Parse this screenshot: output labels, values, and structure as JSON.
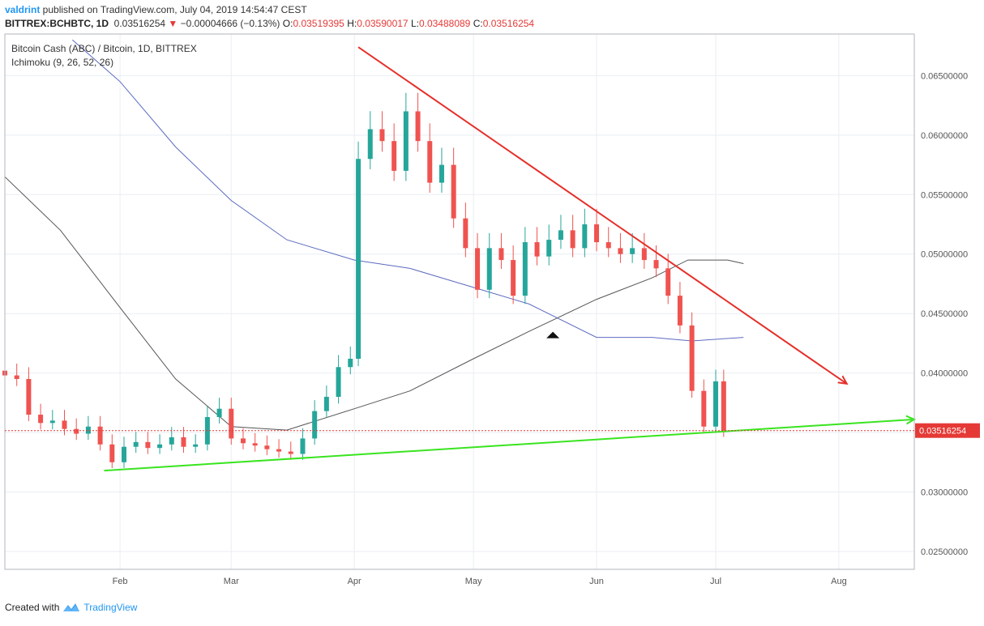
{
  "header": {
    "user": "valdrint",
    "published_text": " published on TradingView.com, July 04, 2019 14:54:47 CEST",
    "symbol": "BITTREX:BCHBTC, 1D",
    "price": "0.03516254",
    "change_arrow": "▼",
    "change": "−0.00004666 (−0.13%)",
    "o_label": "O:",
    "o_value": "0.03519395",
    "h_label": "H:",
    "h_value": "0.03590017",
    "l_label": "L:",
    "l_value": "0.03488089",
    "c_label": "C:",
    "c_value": "0.03516254"
  },
  "footer": {
    "created_with": "Created with",
    "brand": "TradingView"
  },
  "colors": {
    "up": "#26a69a",
    "down": "#ef5350",
    "grid": "#e9eef3",
    "ma_black": "#555555",
    "ma_blue": "#5c6bc0",
    "resistance": "#e5302a",
    "support": "#39e41f",
    "price_line": "#e53935"
  },
  "chart_data": {
    "type": "candlestick",
    "title": "Bitcoin Cash (ABC) / Bitcoin, 1D, BITTREX",
    "indicator": "Ichimoku (9, 26, 52, 26)",
    "x_labels": [
      "Feb",
      "Mar",
      "Apr",
      "May",
      "Jun",
      "Jul",
      "Aug"
    ],
    "y_ticks": [
      0.025,
      0.03,
      0.035,
      0.04,
      0.045,
      0.05,
      0.055,
      0.06,
      0.065
    ],
    "y_tick_labels": [
      "0.02500000",
      "0.03000000",
      "0.03500000",
      "0.04000000",
      "0.04500000",
      "0.05000000",
      "0.05500000",
      "0.06000000",
      "0.06500000"
    ],
    "ylim": [
      0.0235,
      0.0685
    ],
    "date_range": [
      "2019-01-03",
      "2019-08-20"
    ],
    "current_price": 0.03516254,
    "current_price_label": "0.03516254",
    "close_series": [
      [
        "2019-01-03",
        0.0398
      ],
      [
        "2019-01-06",
        0.0395
      ],
      [
        "2019-01-09",
        0.0365
      ],
      [
        "2019-01-12",
        0.0358
      ],
      [
        "2019-01-15",
        0.036
      ],
      [
        "2019-01-18",
        0.0353
      ],
      [
        "2019-01-21",
        0.0349
      ],
      [
        "2019-01-24",
        0.0355
      ],
      [
        "2019-01-27",
        0.034
      ],
      [
        "2019-01-30",
        0.0325
      ],
      [
        "2019-02-02",
        0.0338
      ],
      [
        "2019-02-05",
        0.0342
      ],
      [
        "2019-02-08",
        0.0337
      ],
      [
        "2019-02-11",
        0.034
      ],
      [
        "2019-02-14",
        0.0346
      ],
      [
        "2019-02-17",
        0.0338
      ],
      [
        "2019-02-20",
        0.034
      ],
      [
        "2019-02-23",
        0.0363
      ],
      [
        "2019-02-26",
        0.037
      ],
      [
        "2019-03-01",
        0.0345
      ],
      [
        "2019-03-04",
        0.0341
      ],
      [
        "2019-03-07",
        0.0339
      ],
      [
        "2019-03-10",
        0.0336
      ],
      [
        "2019-03-13",
        0.0334
      ],
      [
        "2019-03-16",
        0.0332
      ],
      [
        "2019-03-19",
        0.0345
      ],
      [
        "2019-03-22",
        0.0368
      ],
      [
        "2019-03-25",
        0.038
      ],
      [
        "2019-03-28",
        0.0405
      ],
      [
        "2019-03-31",
        0.0412
      ],
      [
        "2019-04-02",
        0.058
      ],
      [
        "2019-04-05",
        0.0605
      ],
      [
        "2019-04-08",
        0.0595
      ],
      [
        "2019-04-11",
        0.057
      ],
      [
        "2019-04-14",
        0.062
      ],
      [
        "2019-04-17",
        0.0595
      ],
      [
        "2019-04-20",
        0.056
      ],
      [
        "2019-04-23",
        0.0575
      ],
      [
        "2019-04-26",
        0.053
      ],
      [
        "2019-04-29",
        0.0505
      ],
      [
        "2019-05-02",
        0.047
      ],
      [
        "2019-05-05",
        0.0505
      ],
      [
        "2019-05-08",
        0.0495
      ],
      [
        "2019-05-11",
        0.0465
      ],
      [
        "2019-05-14",
        0.051
      ],
      [
        "2019-05-17",
        0.0498
      ],
      [
        "2019-05-20",
        0.0512
      ],
      [
        "2019-05-23",
        0.052
      ],
      [
        "2019-05-26",
        0.0505
      ],
      [
        "2019-05-29",
        0.0525
      ],
      [
        "2019-06-01",
        0.051
      ],
      [
        "2019-06-04",
        0.0505
      ],
      [
        "2019-06-07",
        0.05
      ],
      [
        "2019-06-10",
        0.0505
      ],
      [
        "2019-06-13",
        0.0495
      ],
      [
        "2019-06-16",
        0.0488
      ],
      [
        "2019-06-19",
        0.0465
      ],
      [
        "2019-06-22",
        0.044
      ],
      [
        "2019-06-25",
        0.0385
      ],
      [
        "2019-06-28",
        0.0355
      ],
      [
        "2019-07-01",
        0.0393
      ],
      [
        "2019-07-03",
        0.03516
      ]
    ],
    "ma_black": [
      [
        "2019-01-03",
        0.0565
      ],
      [
        "2019-01-17",
        0.052
      ],
      [
        "2019-02-01",
        0.0455
      ],
      [
        "2019-02-15",
        0.0395
      ],
      [
        "2019-03-01",
        0.0355
      ],
      [
        "2019-03-15",
        0.0352
      ],
      [
        "2019-04-01",
        0.037
      ],
      [
        "2019-04-15",
        0.0385
      ],
      [
        "2019-05-01",
        0.0412
      ],
      [
        "2019-05-15",
        0.0435
      ],
      [
        "2019-06-01",
        0.0462
      ],
      [
        "2019-06-15",
        0.048
      ],
      [
        "2019-06-24",
        0.0495
      ],
      [
        "2019-07-04",
        0.0495
      ],
      [
        "2019-07-08",
        0.0492
      ]
    ],
    "ma_blue": [
      [
        "2019-01-20",
        0.068
      ],
      [
        "2019-02-01",
        0.0645
      ],
      [
        "2019-02-15",
        0.059
      ],
      [
        "2019-03-01",
        0.0545
      ],
      [
        "2019-03-15",
        0.0512
      ],
      [
        "2019-04-01",
        0.0495
      ],
      [
        "2019-04-15",
        0.0488
      ],
      [
        "2019-05-01",
        0.0472
      ],
      [
        "2019-05-15",
        0.0458
      ],
      [
        "2019-06-01",
        0.043
      ],
      [
        "2019-06-15",
        0.043
      ],
      [
        "2019-06-25",
        0.0427
      ],
      [
        "2019-07-08",
        0.043
      ]
    ],
    "trendlines": [
      {
        "name": "resistance",
        "from": [
          "2019-04-02",
          0.0674
        ],
        "to": [
          "2019-08-03",
          0.0391
        ]
      },
      {
        "name": "support",
        "from": [
          "2019-01-28",
          0.0318
        ],
        "to": [
          "2019-08-20",
          0.0361
        ]
      }
    ],
    "marker": {
      "date": "2019-05-21",
      "value": 0.0432
    }
  }
}
